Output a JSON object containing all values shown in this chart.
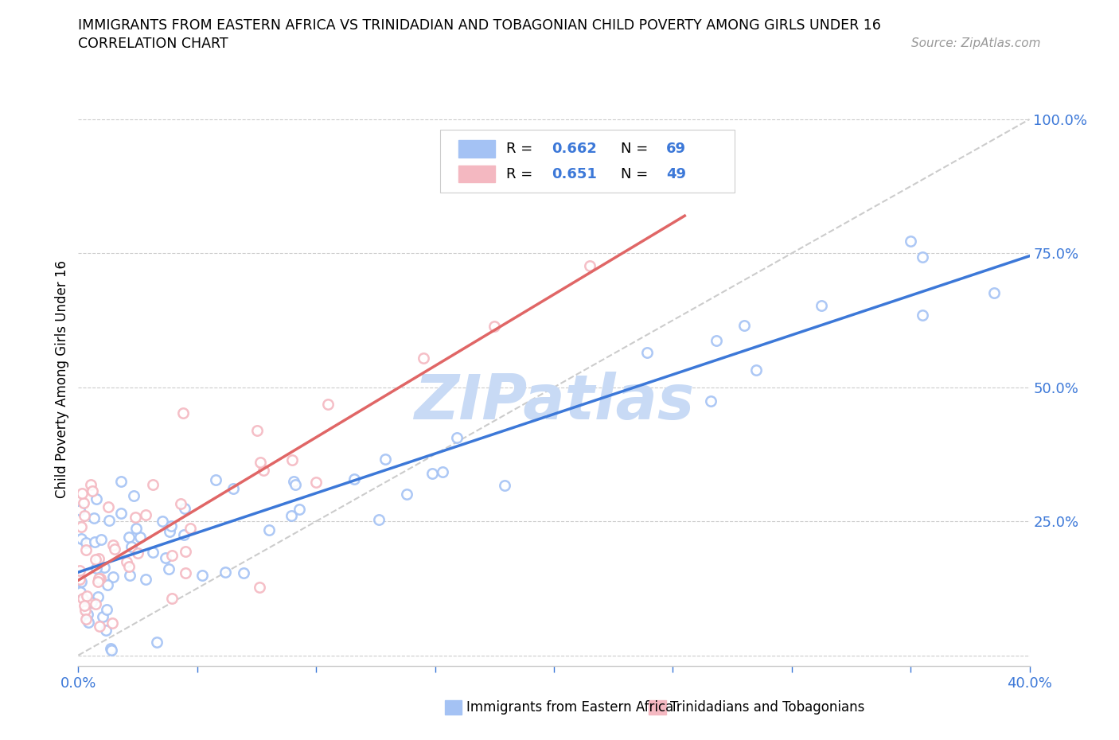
{
  "title_line1": "IMMIGRANTS FROM EASTERN AFRICA VS TRINIDADIAN AND TOBAGONIAN CHILD POVERTY AMONG GIRLS UNDER 16",
  "title_line2": "CORRELATION CHART",
  "source_text": "Source: ZipAtlas.com",
  "ylabel": "Child Poverty Among Girls Under 16",
  "xlim": [
    0.0,
    0.4
  ],
  "ylim": [
    -0.02,
    1.05
  ],
  "yticks": [
    0.0,
    0.25,
    0.5,
    0.75,
    1.0
  ],
  "xticks": [
    0.0,
    0.05,
    0.1,
    0.15,
    0.2,
    0.25,
    0.3,
    0.35,
    0.4
  ],
  "xtick_labels_show": [
    "0.0%",
    "",
    "",
    "",
    "",
    "",
    "",
    "",
    "40.0%"
  ],
  "ytick_labels": [
    "",
    "25.0%",
    "50.0%",
    "75.0%",
    "100.0%"
  ],
  "blue_color": "#a4c2f4",
  "pink_color": "#f4b8c1",
  "blue_line_color": "#3c78d8",
  "pink_line_color": "#e06666",
  "dashed_line_color": "#cccccc",
  "text_color_blue": "#3c78d8",
  "grid_color": "#cccccc",
  "watermark_text": "ZIPatlas",
  "watermark_color": "#c8daf5",
  "legend_R1": "0.662",
  "legend_N1": "69",
  "legend_R2": "0.651",
  "legend_N2": "49",
  "blue_line_x": [
    0.0,
    0.4
  ],
  "blue_line_y": [
    0.155,
    0.745
  ],
  "pink_line_x": [
    0.0,
    0.255
  ],
  "pink_line_y": [
    0.14,
    0.82
  ]
}
